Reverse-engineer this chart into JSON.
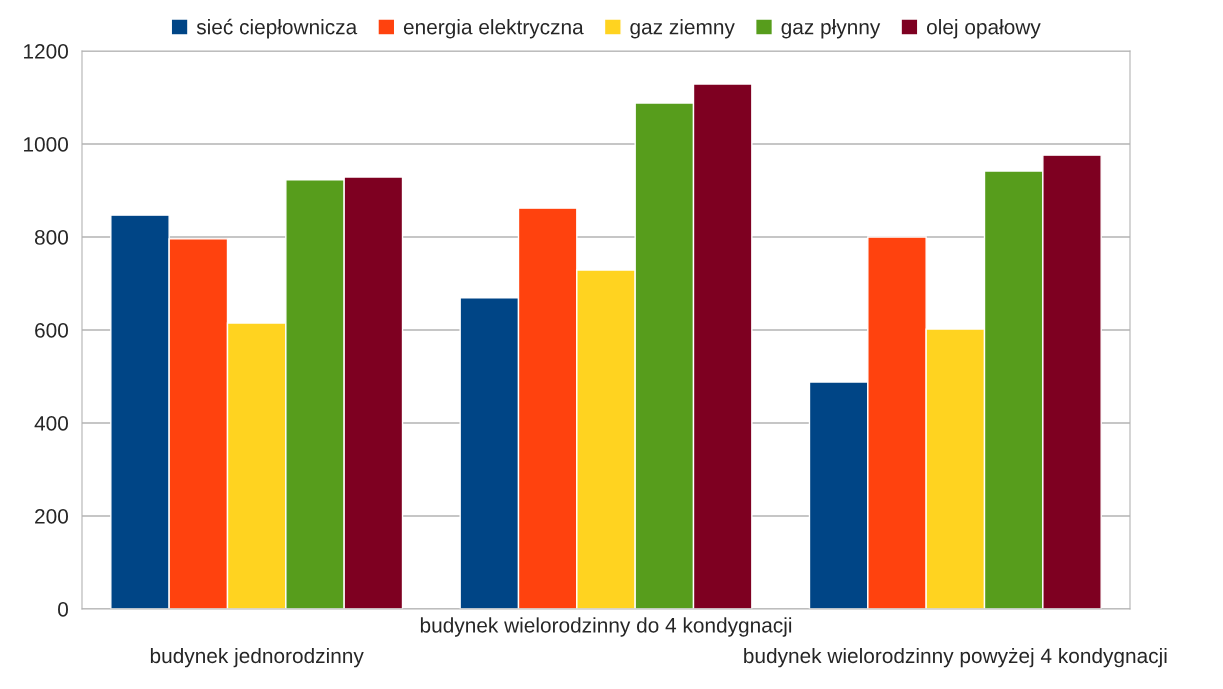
{
  "chart_data": {
    "type": "bar",
    "categories": [
      "budynek jednorodzinny",
      "budynek wielorodzinny do 4 kondygnacji",
      "budynek wielorodzinny powyżej 4 kondygnacji"
    ],
    "series": [
      {
        "name": "sieć ciepłownicza",
        "color": "#004586",
        "values": [
          847,
          669,
          488
        ]
      },
      {
        "name": "energia elektryczna",
        "color": "#ff420e",
        "values": [
          796,
          862,
          800
        ]
      },
      {
        "name": "gaz ziemny",
        "color": "#ffd320",
        "values": [
          615,
          729,
          602
        ]
      },
      {
        "name": "gaz płynny",
        "color": "#579d1c",
        "values": [
          923,
          1088,
          942
        ]
      },
      {
        "name": "olej opałowy",
        "color": "#7e0021",
        "values": [
          929,
          1129,
          976
        ]
      }
    ],
    "ylim": [
      0,
      1200
    ],
    "yticks": [
      0,
      200,
      400,
      600,
      800,
      1000,
      1200
    ],
    "grid": "y",
    "legend": "top"
  }
}
